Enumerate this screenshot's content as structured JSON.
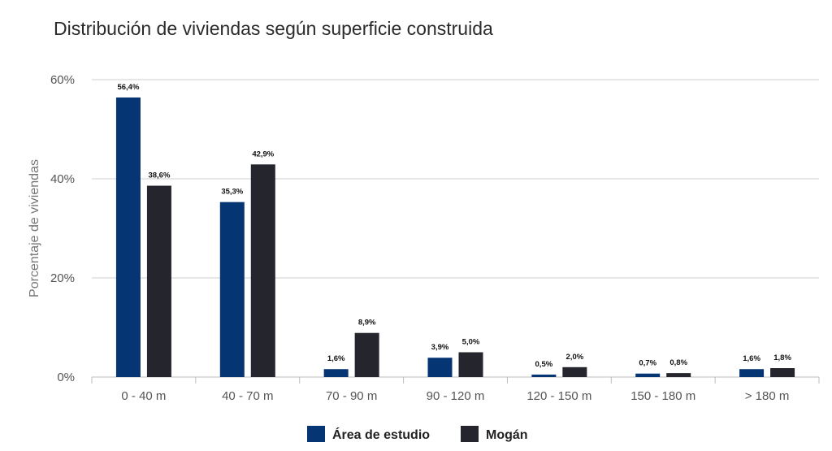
{
  "chart_data": {
    "type": "bar",
    "title": "Distribución de viviendas según superficie construida",
    "xlabel": "",
    "ylabel": "Porcentaje de viviendas",
    "ylim": [
      0,
      60
    ],
    "yticks": [
      "0%",
      "20%",
      "40%",
      "60%"
    ],
    "categories": [
      "0 - 40 m",
      "40 - 70 m",
      "70 - 90 m",
      "90 - 120 m",
      "120 - 150 m",
      "150 - 180 m",
      "> 180 m"
    ],
    "series": [
      {
        "name": "Área de estudio",
        "color": "#063574",
        "values": [
          56.4,
          35.3,
          1.6,
          3.9,
          0.5,
          0.7,
          1.6
        ],
        "labels": [
          "56,4%",
          "35,3%",
          "1,6%",
          "3,9%",
          "0,5%",
          "0,7%",
          "1,6%"
        ]
      },
      {
        "name": "Mogán",
        "color": "#25262d",
        "values": [
          38.6,
          42.9,
          8.9,
          5.0,
          2.0,
          0.8,
          1.8
        ],
        "labels": [
          "38,6%",
          "42,9%",
          "8,9%",
          "5,0%",
          "2,0%",
          "0,8%",
          "1,8%"
        ]
      }
    ],
    "grid": true,
    "legend": "bottom-center"
  }
}
